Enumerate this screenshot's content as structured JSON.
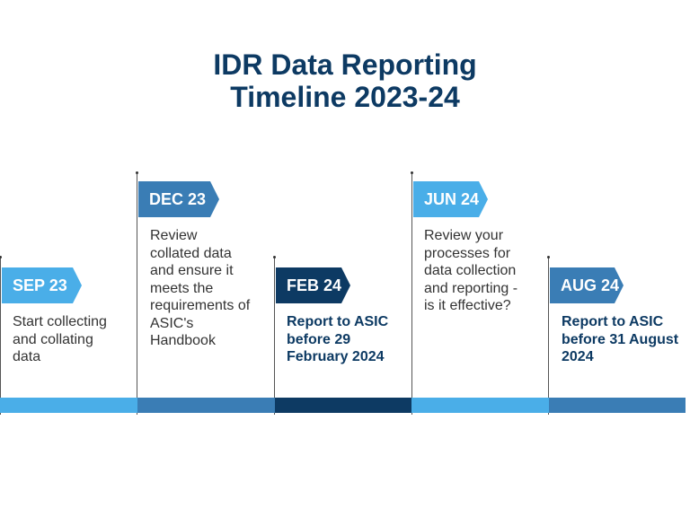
{
  "title": {
    "line1": "IDR Data Reporting",
    "line2": "Timeline 2023-24"
  },
  "colors": {
    "light_blue": "#4aaee8",
    "mid_blue": "#3a7db5",
    "dark_navy": "#0d3a63",
    "text_gray": "#333333"
  },
  "milestones": [
    {
      "label": "SEP 23",
      "lines": [
        "Start collecting",
        "and collating",
        "data"
      ],
      "style": "regular"
    },
    {
      "label": "DEC 23",
      "lines": [
        "Review",
        "collated data",
        "and ensure it",
        "meets the",
        "requirements of",
        "ASIC's",
        "Handbook"
      ],
      "style": "regular"
    },
    {
      "label": "FEB 24",
      "lines": [
        "Report to ASIC",
        "before 29",
        "February 2024"
      ],
      "style": "bold"
    },
    {
      "label": "JUN 24",
      "lines": [
        "Review your",
        "processes for",
        "data collection",
        "and reporting -",
        "is it effective?"
      ],
      "style": "regular"
    },
    {
      "label": "AUG 24",
      "lines": [
        "Report to ASIC",
        "before 31 August",
        "2024"
      ],
      "style": "bold"
    }
  ]
}
